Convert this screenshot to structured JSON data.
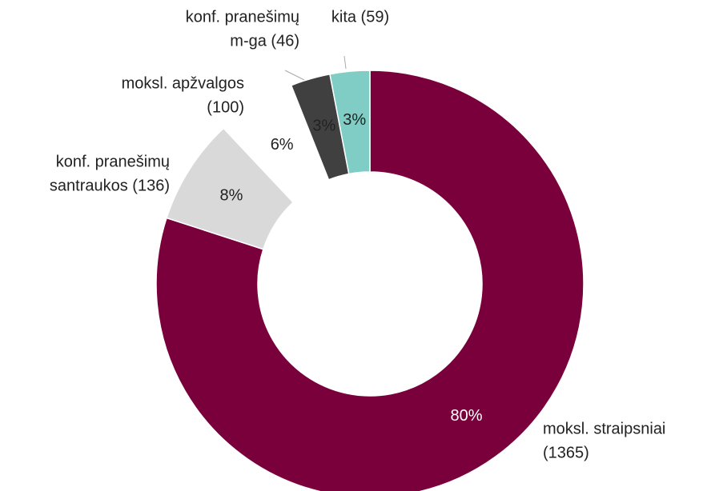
{
  "chart_data": {
    "type": "donut",
    "categories": [
      [
        "moksl. straipsniai",
        "(1365)"
      ],
      [
        "konf. pranešimų",
        "santraukos (136)"
      ],
      [
        "moksl. apžvalgos",
        "(100)"
      ],
      [
        "konf. pranešimų",
        "m-ga (46)"
      ],
      [
        "kita (59)"
      ]
    ],
    "values": [
      80,
      8,
      6,
      3,
      3
    ],
    "value_labels": [
      "80%",
      "8%",
      "6%",
      "3%",
      "3%"
    ],
    "colors": [
      "#7a003c",
      "#d9d9d9",
      "#ffffff",
      "#404040",
      "#7fcdc4"
    ]
  }
}
